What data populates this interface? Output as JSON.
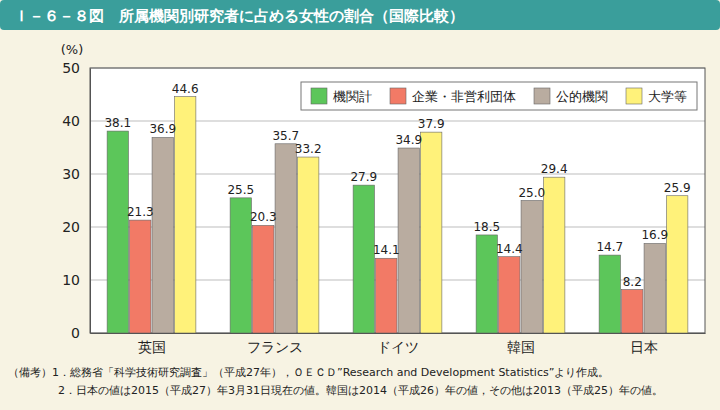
{
  "chart_data": {
    "type": "bar",
    "title": "Ｉ－６－８図　所属機関別研究者に占める女性の割合（国際比較）",
    "y_label": "(%)",
    "categories": [
      "英国",
      "フランス",
      "ドイツ",
      "韓国",
      "日本"
    ],
    "series": [
      {
        "name": "機関計",
        "color": "#5cc65a",
        "values": [
          38.1,
          25.5,
          27.9,
          18.5,
          14.7
        ]
      },
      {
        "name": "企業・非営利団体",
        "color": "#f27a66",
        "values": [
          21.3,
          20.3,
          14.1,
          14.4,
          8.2
        ]
      },
      {
        "name": "公的機関",
        "color": "#b9aca0",
        "values": [
          36.9,
          35.7,
          34.9,
          25.0,
          16.9
        ],
        "value_labels": [
          "36.9",
          "35.7",
          "34.9",
          "25.0",
          "16.9"
        ]
      },
      {
        "name": "大学等",
        "color": "#fff27a",
        "values": [
          44.6,
          33.2,
          37.9,
          29.4,
          25.9
        ]
      }
    ],
    "ylim": [
      0,
      50
    ],
    "yticks": [
      0,
      10,
      20,
      30,
      40,
      50
    ],
    "grid": true,
    "legend": "top-right",
    "data_labels": true,
    "annotations": [
      "（備考）1．総務省「科学技術研究調査」（平成27年），ＯＥＣＤ”Research and Development Statistics”より作成。",
      "2．日本の値は2015（平成27）年3月31日現在の値。韓国は2014（平成26）年の値，その他は2013（平成25）年の値。"
    ]
  }
}
